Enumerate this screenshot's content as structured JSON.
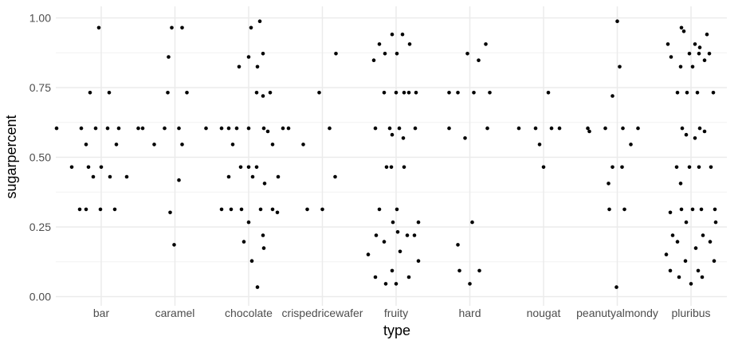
{
  "chart_data": {
    "type": "scatter",
    "style": "strip plot with horizontal jitter",
    "xlabel": "type",
    "ylabel": "sugarpercent",
    "categories": [
      "bar",
      "caramel",
      "chocolate",
      "crispedricewafer",
      "fruity",
      "hard",
      "nougat",
      "peanutyalmondy",
      "pluribus"
    ],
    "ylim": [
      0,
      1.02
    ],
    "yticks": [
      0.0,
      0.25,
      0.5,
      0.75,
      1.0
    ],
    "ytick_labels": [
      "0.00",
      "0.25",
      "0.50",
      "0.75",
      "1.00"
    ],
    "grid": true,
    "point_color": "#000000",
    "series": [
      {
        "category": "bar",
        "points": [
          {
            "jitter": -0.03,
            "y": 0.965
          },
          {
            "jitter": -0.14,
            "y": 0.732
          },
          {
            "jitter": 0.1,
            "y": 0.732
          },
          {
            "jitter": -0.56,
            "y": 0.604
          },
          {
            "jitter": -0.25,
            "y": 0.604
          },
          {
            "jitter": -0.07,
            "y": 0.604
          },
          {
            "jitter": 0.08,
            "y": 0.604
          },
          {
            "jitter": 0.22,
            "y": 0.604
          },
          {
            "jitter": 0.52,
            "y": 0.604
          },
          {
            "jitter": -0.19,
            "y": 0.546
          },
          {
            "jitter": 0.19,
            "y": 0.546
          },
          {
            "jitter": -0.37,
            "y": 0.465
          },
          {
            "jitter": -0.16,
            "y": 0.465
          },
          {
            "jitter": 0.0,
            "y": 0.465
          },
          {
            "jitter": -0.1,
            "y": 0.43
          },
          {
            "jitter": 0.11,
            "y": 0.43
          },
          {
            "jitter": 0.32,
            "y": 0.43
          },
          {
            "jitter": -0.27,
            "y": 0.313
          },
          {
            "jitter": -0.19,
            "y": 0.313
          },
          {
            "jitter": -0.01,
            "y": 0.313
          },
          {
            "jitter": 0.17,
            "y": 0.313
          }
        ]
      },
      {
        "category": "caramel",
        "points": [
          {
            "jitter": -0.04,
            "y": 0.965
          },
          {
            "jitter": 0.09,
            "y": 0.965
          },
          {
            "jitter": -0.08,
            "y": 0.86
          },
          {
            "jitter": -0.09,
            "y": 0.732
          },
          {
            "jitter": 0.15,
            "y": 0.732
          },
          {
            "jitter": -0.46,
            "y": 0.604
          },
          {
            "jitter": -0.13,
            "y": 0.604
          },
          {
            "jitter": 0.05,
            "y": 0.604
          },
          {
            "jitter": 0.39,
            "y": 0.604
          },
          {
            "jitter": -0.26,
            "y": 0.546
          },
          {
            "jitter": 0.09,
            "y": 0.546
          },
          {
            "jitter": 0.05,
            "y": 0.418
          },
          {
            "jitter": -0.06,
            "y": 0.302
          },
          {
            "jitter": -0.01,
            "y": 0.186
          }
        ]
      },
      {
        "category": "chocolate",
        "points": [
          {
            "jitter": 0.14,
            "y": 0.988
          },
          {
            "jitter": 0.03,
            "y": 0.965
          },
          {
            "jitter": 0.18,
            "y": 0.872
          },
          {
            "jitter": 0.0,
            "y": 0.86
          },
          {
            "jitter": -0.12,
            "y": 0.825
          },
          {
            "jitter": 0.11,
            "y": 0.825
          },
          {
            "jitter": 0.27,
            "y": 0.732
          },
          {
            "jitter": 0.1,
            "y": 0.732
          },
          {
            "jitter": 0.18,
            "y": 0.72
          },
          {
            "jitter": -0.34,
            "y": 0.604
          },
          {
            "jitter": -0.25,
            "y": 0.604
          },
          {
            "jitter": -0.15,
            "y": 0.604
          },
          {
            "jitter": 0.0,
            "y": 0.604
          },
          {
            "jitter": 0.19,
            "y": 0.604
          },
          {
            "jitter": 0.43,
            "y": 0.604
          },
          {
            "jitter": 0.5,
            "y": 0.604
          },
          {
            "jitter": 0.24,
            "y": 0.593
          },
          {
            "jitter": -0.2,
            "y": 0.546
          },
          {
            "jitter": 0.3,
            "y": 0.546
          },
          {
            "jitter": 0.0,
            "y": 0.465
          },
          {
            "jitter": 0.1,
            "y": 0.465
          },
          {
            "jitter": -0.1,
            "y": 0.465
          },
          {
            "jitter": -0.25,
            "y": 0.43
          },
          {
            "jitter": 0.05,
            "y": 0.43
          },
          {
            "jitter": 0.37,
            "y": 0.43
          },
          {
            "jitter": 0.2,
            "y": 0.406
          },
          {
            "jitter": -0.34,
            "y": 0.313
          },
          {
            "jitter": -0.22,
            "y": 0.313
          },
          {
            "jitter": -0.09,
            "y": 0.313
          },
          {
            "jitter": 0.15,
            "y": 0.313
          },
          {
            "jitter": 0.3,
            "y": 0.313
          },
          {
            "jitter": 0.36,
            "y": 0.302
          },
          {
            "jitter": 0.0,
            "y": 0.267
          },
          {
            "jitter": 0.18,
            "y": 0.22
          },
          {
            "jitter": -0.06,
            "y": 0.197
          },
          {
            "jitter": 0.19,
            "y": 0.174
          },
          {
            "jitter": 0.04,
            "y": 0.128
          },
          {
            "jitter": 0.11,
            "y": 0.034
          }
        ]
      },
      {
        "category": "crispedricewafer",
        "points": [
          {
            "jitter": 0.17,
            "y": 0.872
          },
          {
            "jitter": -0.04,
            "y": 0.732
          },
          {
            "jitter": 0.09,
            "y": 0.604
          },
          {
            "jitter": -0.24,
            "y": 0.546
          },
          {
            "jitter": 0.16,
            "y": 0.43
          },
          {
            "jitter": -0.19,
            "y": 0.313
          },
          {
            "jitter": 0.0,
            "y": 0.313
          }
        ]
      },
      {
        "category": "fruity",
        "points": [
          {
            "jitter": -0.05,
            "y": 0.941
          },
          {
            "jitter": 0.08,
            "y": 0.941
          },
          {
            "jitter": -0.21,
            "y": 0.906
          },
          {
            "jitter": 0.17,
            "y": 0.906
          },
          {
            "jitter": -0.14,
            "y": 0.872
          },
          {
            "jitter": 0.01,
            "y": 0.872
          },
          {
            "jitter": -0.28,
            "y": 0.848
          },
          {
            "jitter": -0.15,
            "y": 0.732
          },
          {
            "jitter": 0.0,
            "y": 0.732
          },
          {
            "jitter": 0.1,
            "y": 0.732
          },
          {
            "jitter": 0.16,
            "y": 0.732
          },
          {
            "jitter": 0.25,
            "y": 0.732
          },
          {
            "jitter": -0.26,
            "y": 0.604
          },
          {
            "jitter": -0.08,
            "y": 0.604
          },
          {
            "jitter": 0.04,
            "y": 0.604
          },
          {
            "jitter": 0.24,
            "y": 0.604
          },
          {
            "jitter": -0.05,
            "y": 0.581
          },
          {
            "jitter": 0.09,
            "y": 0.569
          },
          {
            "jitter": -0.12,
            "y": 0.465
          },
          {
            "jitter": -0.06,
            "y": 0.465
          },
          {
            "jitter": 0.1,
            "y": 0.465
          },
          {
            "jitter": -0.21,
            "y": 0.313
          },
          {
            "jitter": 0.01,
            "y": 0.313
          },
          {
            "jitter": -0.04,
            "y": 0.267
          },
          {
            "jitter": 0.28,
            "y": 0.267
          },
          {
            "jitter": 0.02,
            "y": 0.232
          },
          {
            "jitter": -0.25,
            "y": 0.22
          },
          {
            "jitter": 0.14,
            "y": 0.22
          },
          {
            "jitter": 0.23,
            "y": 0.22
          },
          {
            "jitter": -0.15,
            "y": 0.197
          },
          {
            "jitter": 0.05,
            "y": 0.162
          },
          {
            "jitter": -0.35,
            "y": 0.151
          },
          {
            "jitter": 0.28,
            "y": 0.128
          },
          {
            "jitter": -0.05,
            "y": 0.093
          },
          {
            "jitter": -0.26,
            "y": 0.07
          },
          {
            "jitter": 0.16,
            "y": 0.07
          },
          {
            "jitter": -0.13,
            "y": 0.046
          },
          {
            "jitter": 0.0,
            "y": 0.046
          }
        ]
      },
      {
        "category": "hard",
        "points": [
          {
            "jitter": 0.2,
            "y": 0.906
          },
          {
            "jitter": -0.03,
            "y": 0.872
          },
          {
            "jitter": 0.11,
            "y": 0.848
          },
          {
            "jitter": -0.26,
            "y": 0.732
          },
          {
            "jitter": -0.15,
            "y": 0.732
          },
          {
            "jitter": 0.05,
            "y": 0.732
          },
          {
            "jitter": 0.25,
            "y": 0.732
          },
          {
            "jitter": -0.26,
            "y": 0.604
          },
          {
            "jitter": 0.22,
            "y": 0.604
          },
          {
            "jitter": -0.06,
            "y": 0.569
          },
          {
            "jitter": 0.03,
            "y": 0.267
          },
          {
            "jitter": -0.15,
            "y": 0.186
          },
          {
            "jitter": -0.13,
            "y": 0.093
          },
          {
            "jitter": 0.12,
            "y": 0.093
          },
          {
            "jitter": 0.0,
            "y": 0.046
          }
        ]
      },
      {
        "category": "nougat",
        "points": [
          {
            "jitter": 0.06,
            "y": 0.732
          },
          {
            "jitter": -0.31,
            "y": 0.604
          },
          {
            "jitter": -0.1,
            "y": 0.604
          },
          {
            "jitter": 0.1,
            "y": 0.604
          },
          {
            "jitter": 0.2,
            "y": 0.604
          },
          {
            "jitter": -0.05,
            "y": 0.546
          },
          {
            "jitter": 0.0,
            "y": 0.465
          }
        ]
      },
      {
        "category": "peanutyalmondy",
        "points": [
          {
            "jitter": 0.0,
            "y": 0.988
          },
          {
            "jitter": 0.03,
            "y": 0.825
          },
          {
            "jitter": -0.06,
            "y": 0.72
          },
          {
            "jitter": -0.37,
            "y": 0.604
          },
          {
            "jitter": -0.15,
            "y": 0.604
          },
          {
            "jitter": 0.07,
            "y": 0.604
          },
          {
            "jitter": 0.26,
            "y": 0.604
          },
          {
            "jitter": -0.35,
            "y": 0.593
          },
          {
            "jitter": 0.17,
            "y": 0.546
          },
          {
            "jitter": -0.06,
            "y": 0.465
          },
          {
            "jitter": 0.06,
            "y": 0.465
          },
          {
            "jitter": -0.11,
            "y": 0.406
          },
          {
            "jitter": -0.1,
            "y": 0.313
          },
          {
            "jitter": 0.09,
            "y": 0.313
          },
          {
            "jitter": -0.01,
            "y": 0.034
          }
        ]
      },
      {
        "category": "pluribus",
        "points": [
          {
            "jitter": -0.12,
            "y": 0.965
          },
          {
            "jitter": -0.09,
            "y": 0.952
          },
          {
            "jitter": 0.2,
            "y": 0.941
          },
          {
            "jitter": -0.29,
            "y": 0.906
          },
          {
            "jitter": 0.05,
            "y": 0.906
          },
          {
            "jitter": 0.11,
            "y": 0.894
          },
          {
            "jitter": -0.02,
            "y": 0.872
          },
          {
            "jitter": 0.23,
            "y": 0.872
          },
          {
            "jitter": 0.1,
            "y": 0.872
          },
          {
            "jitter": -0.25,
            "y": 0.86
          },
          {
            "jitter": 0.17,
            "y": 0.848
          },
          {
            "jitter": -0.13,
            "y": 0.825
          },
          {
            "jitter": 0.02,
            "y": 0.825
          },
          {
            "jitter": -0.17,
            "y": 0.732
          },
          {
            "jitter": -0.05,
            "y": 0.732
          },
          {
            "jitter": 0.08,
            "y": 0.732
          },
          {
            "jitter": 0.28,
            "y": 0.732
          },
          {
            "jitter": -0.11,
            "y": 0.604
          },
          {
            "jitter": 0.11,
            "y": 0.604
          },
          {
            "jitter": 0.17,
            "y": 0.593
          },
          {
            "jitter": -0.06,
            "y": 0.581
          },
          {
            "jitter": 0.05,
            "y": 0.569
          },
          {
            "jitter": -0.18,
            "y": 0.465
          },
          {
            "jitter": -0.02,
            "y": 0.465
          },
          {
            "jitter": 0.1,
            "y": 0.465
          },
          {
            "jitter": 0.25,
            "y": 0.465
          },
          {
            "jitter": -0.13,
            "y": 0.406
          },
          {
            "jitter": -0.26,
            "y": 0.302
          },
          {
            "jitter": -0.12,
            "y": 0.313
          },
          {
            "jitter": 0.02,
            "y": 0.313
          },
          {
            "jitter": 0.13,
            "y": 0.313
          },
          {
            "jitter": 0.3,
            "y": 0.313
          },
          {
            "jitter": -0.06,
            "y": 0.267
          },
          {
            "jitter": 0.31,
            "y": 0.267
          },
          {
            "jitter": -0.23,
            "y": 0.22
          },
          {
            "jitter": 0.15,
            "y": 0.22
          },
          {
            "jitter": -0.17,
            "y": 0.197
          },
          {
            "jitter": 0.24,
            "y": 0.197
          },
          {
            "jitter": 0.06,
            "y": 0.174
          },
          {
            "jitter": -0.31,
            "y": 0.151
          },
          {
            "jitter": -0.07,
            "y": 0.128
          },
          {
            "jitter": 0.29,
            "y": 0.128
          },
          {
            "jitter": -0.26,
            "y": 0.093
          },
          {
            "jitter": 0.09,
            "y": 0.093
          },
          {
            "jitter": -0.15,
            "y": 0.07
          },
          {
            "jitter": 0.14,
            "y": 0.07
          },
          {
            "jitter": 0.0,
            "y": 0.046
          }
        ]
      }
    ]
  }
}
